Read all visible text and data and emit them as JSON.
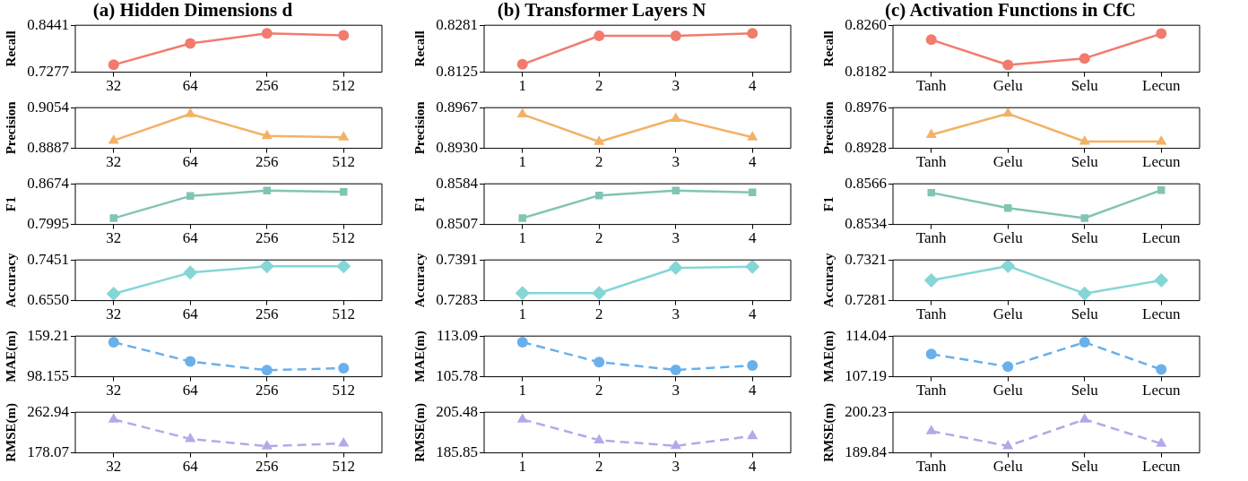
{
  "chart_data": [
    {
      "type": "line",
      "title": "(a) Hidden Dimensions d",
      "ylabel": "Recall",
      "categories": [
        "32",
        "64",
        "256",
        "512"
      ],
      "series": [
        {
          "color": "#f27b6e",
          "values": [
            0.746,
            0.799,
            0.824,
            0.819
          ]
        }
      ],
      "ylim": [
        0.7277,
        0.8441
      ],
      "yticks": [
        0.7277,
        0.8441
      ],
      "marker": "circle",
      "line_style": "solid"
    },
    {
      "type": "line",
      "ylabel": "Precision",
      "categories": [
        "32",
        "64",
        "256",
        "512"
      ],
      "series": [
        {
          "color": "#f2b266",
          "values": [
            0.8919,
            0.9028,
            0.8938,
            0.8932
          ]
        }
      ],
      "ylim": [
        0.8887,
        0.9054
      ],
      "yticks": [
        0.8887,
        0.9054
      ],
      "marker": "triangle",
      "line_style": "solid"
    },
    {
      "type": "line",
      "ylabel": "F1",
      "categories": [
        "32",
        "64",
        "256",
        "512"
      ],
      "series": [
        {
          "color": "#82c4b4",
          "values": [
            0.81,
            0.847,
            0.856,
            0.854
          ]
        }
      ],
      "ylim": [
        0.7995,
        0.8674
      ],
      "yticks": [
        0.7995,
        0.8674
      ],
      "marker": "square",
      "line_style": "solid"
    },
    {
      "type": "line",
      "ylabel": "Accuracy",
      "categories": [
        "32",
        "64",
        "256",
        "512"
      ],
      "series": [
        {
          "color": "#85d6d6",
          "values": [
            0.67,
            0.717,
            0.731,
            0.731
          ]
        }
      ],
      "ylim": [
        0.655,
        0.7451
      ],
      "yticks": [
        {
          "value": 0.655,
          "label": "0.6550"
        },
        0.7451
      ],
      "marker": "diamond",
      "line_style": "solid"
    },
    {
      "type": "line",
      "ylabel": "MAE(m)",
      "categories": [
        "32",
        "64",
        "256",
        "512"
      ],
      "series": [
        {
          "color": "#6ab0eb",
          "values": [
            150,
            121,
            108,
            111
          ]
        }
      ],
      "ylim": [
        98.155,
        159.21
      ],
      "yticks": [
        98.155,
        159.21
      ],
      "marker": "circle",
      "line_style": "dashed"
    },
    {
      "type": "line",
      "ylabel": "RMSE(m)",
      "categories": [
        "32",
        "64",
        "256",
        "512"
      ],
      "series": [
        {
          "color": "#b5a8e8",
          "values": [
            248,
            207,
            192,
            198
          ]
        }
      ],
      "ylim": [
        178.07,
        262.94
      ],
      "yticks": [
        178.07,
        262.94
      ],
      "marker": "triangle",
      "line_style": "dashed"
    },
    {
      "type": "line",
      "title": "(b) Transformer Layers N",
      "ylabel": "Recall",
      "categories": [
        "1",
        "2",
        "3",
        "4"
      ],
      "series": [
        {
          "color": "#f27b6e",
          "values": [
            0.8151,
            0.8246,
            0.8246,
            0.8254
          ]
        }
      ],
      "ylim": [
        0.8125,
        0.8281
      ],
      "yticks": [
        0.8125,
        0.8281
      ],
      "marker": "circle",
      "line_style": "solid"
    },
    {
      "type": "line",
      "ylabel": "Precision",
      "categories": [
        "1",
        "2",
        "3",
        "4"
      ],
      "series": [
        {
          "color": "#f2b266",
          "values": [
            0.8961,
            0.8936,
            0.8957,
            0.894
          ]
        }
      ],
      "ylim": [
        0.893,
        0.8967
      ],
      "yticks": [
        {
          "value": 0.893,
          "label": "0.8930"
        },
        0.8967
      ],
      "marker": "triangle",
      "line_style": "solid"
    },
    {
      "type": "line",
      "ylabel": "F1",
      "categories": [
        "1",
        "2",
        "3",
        "4"
      ],
      "series": [
        {
          "color": "#82c4b4",
          "values": [
            0.8519,
            0.8562,
            0.8571,
            0.8568
          ]
        }
      ],
      "ylim": [
        0.8507,
        0.8584
      ],
      "yticks": [
        0.8507,
        0.8584
      ],
      "marker": "square",
      "line_style": "solid"
    },
    {
      "type": "line",
      "ylabel": "Accuracy",
      "categories": [
        "1",
        "2",
        "3",
        "4"
      ],
      "series": [
        {
          "color": "#85d6d6",
          "values": [
            0.7303,
            0.7303,
            0.737,
            0.7373
          ]
        }
      ],
      "ylim": [
        0.7283,
        0.7391
      ],
      "yticks": [
        0.7283,
        0.7391
      ],
      "marker": "diamond",
      "line_style": "solid"
    },
    {
      "type": "line",
      "ylabel": "MAE(m)",
      "categories": [
        "1",
        "2",
        "3",
        "4"
      ],
      "series": [
        {
          "color": "#6ab0eb",
          "values": [
            112.0,
            108.4,
            107.0,
            107.8
          ]
        }
      ],
      "ylim": [
        105.78,
        113.09
      ],
      "yticks": [
        105.78,
        113.09
      ],
      "marker": "circle",
      "line_style": "dashed"
    },
    {
      "type": "line",
      "ylabel": "RMSE(m)",
      "categories": [
        "1",
        "2",
        "3",
        "4"
      ],
      "series": [
        {
          "color": "#b5a8e8",
          "values": [
            202.0,
            192.0,
            189.2,
            194.0
          ]
        }
      ],
      "ylim": [
        185.85,
        205.48
      ],
      "yticks": [
        185.85,
        205.48
      ],
      "marker": "triangle",
      "line_style": "dashed"
    },
    {
      "type": "line",
      "title": "(c) Activation Functions in CfC",
      "ylabel": "Recall",
      "categories": [
        "Tanh",
        "Gelu",
        "Selu",
        "Lecun"
      ],
      "series": [
        {
          "color": "#f27b6e",
          "values": [
            0.8236,
            0.8194,
            0.8205,
            0.8246
          ]
        }
      ],
      "ylim": [
        0.8182,
        0.826
      ],
      "yticks": [
        0.8182,
        {
          "value": 0.826,
          "label": "0.8260"
        }
      ],
      "marker": "circle",
      "line_style": "solid"
    },
    {
      "type": "line",
      "ylabel": "Precision",
      "categories": [
        "Tanh",
        "Gelu",
        "Selu",
        "Lecun"
      ],
      "series": [
        {
          "color": "#f2b266",
          "values": [
            0.8944,
            0.8969,
            0.8936,
            0.8936
          ]
        }
      ],
      "ylim": [
        0.8928,
        0.8976
      ],
      "yticks": [
        0.8928,
        0.8976
      ],
      "marker": "triangle",
      "line_style": "solid"
    },
    {
      "type": "line",
      "ylabel": "F1",
      "categories": [
        "Tanh",
        "Gelu",
        "Selu",
        "Lecun"
      ],
      "series": [
        {
          "color": "#82c4b4",
          "values": [
            0.8559,
            0.8547,
            0.8539,
            0.8561
          ]
        }
      ],
      "ylim": [
        0.8534,
        0.8566
      ],
      "yticks": [
        0.8534,
        0.8566
      ],
      "marker": "square",
      "line_style": "solid"
    },
    {
      "type": "line",
      "ylabel": "Accuracy",
      "categories": [
        "Tanh",
        "Gelu",
        "Selu",
        "Lecun"
      ],
      "series": [
        {
          "color": "#85d6d6",
          "values": [
            0.7301,
            0.7315,
            0.7288,
            0.7301
          ]
        }
      ],
      "ylim": [
        0.7281,
        0.7321
      ],
      "yticks": [
        0.7281,
        0.7321
      ],
      "marker": "diamond",
      "line_style": "solid"
    },
    {
      "type": "line",
      "ylabel": "MAE(m)",
      "categories": [
        "Tanh",
        "Gelu",
        "Selu",
        "Lecun"
      ],
      "series": [
        {
          "color": "#6ab0eb",
          "values": [
            111.0,
            108.9,
            113.0,
            108.4
          ]
        }
      ],
      "ylim": [
        107.19,
        114.04
      ],
      "yticks": [
        107.19,
        114.04
      ],
      "marker": "circle",
      "line_style": "dashed"
    },
    {
      "type": "line",
      "ylabel": "RMSE(m)",
      "categories": [
        "Tanh",
        "Gelu",
        "Selu",
        "Lecun"
      ],
      "series": [
        {
          "color": "#b5a8e8",
          "values": [
            195.4,
            191.6,
            198.4,
            192.2
          ]
        }
      ],
      "ylim": [
        189.84,
        200.23
      ],
      "yticks": [
        189.84,
        200.23
      ],
      "marker": "triangle",
      "line_style": "dashed"
    }
  ]
}
